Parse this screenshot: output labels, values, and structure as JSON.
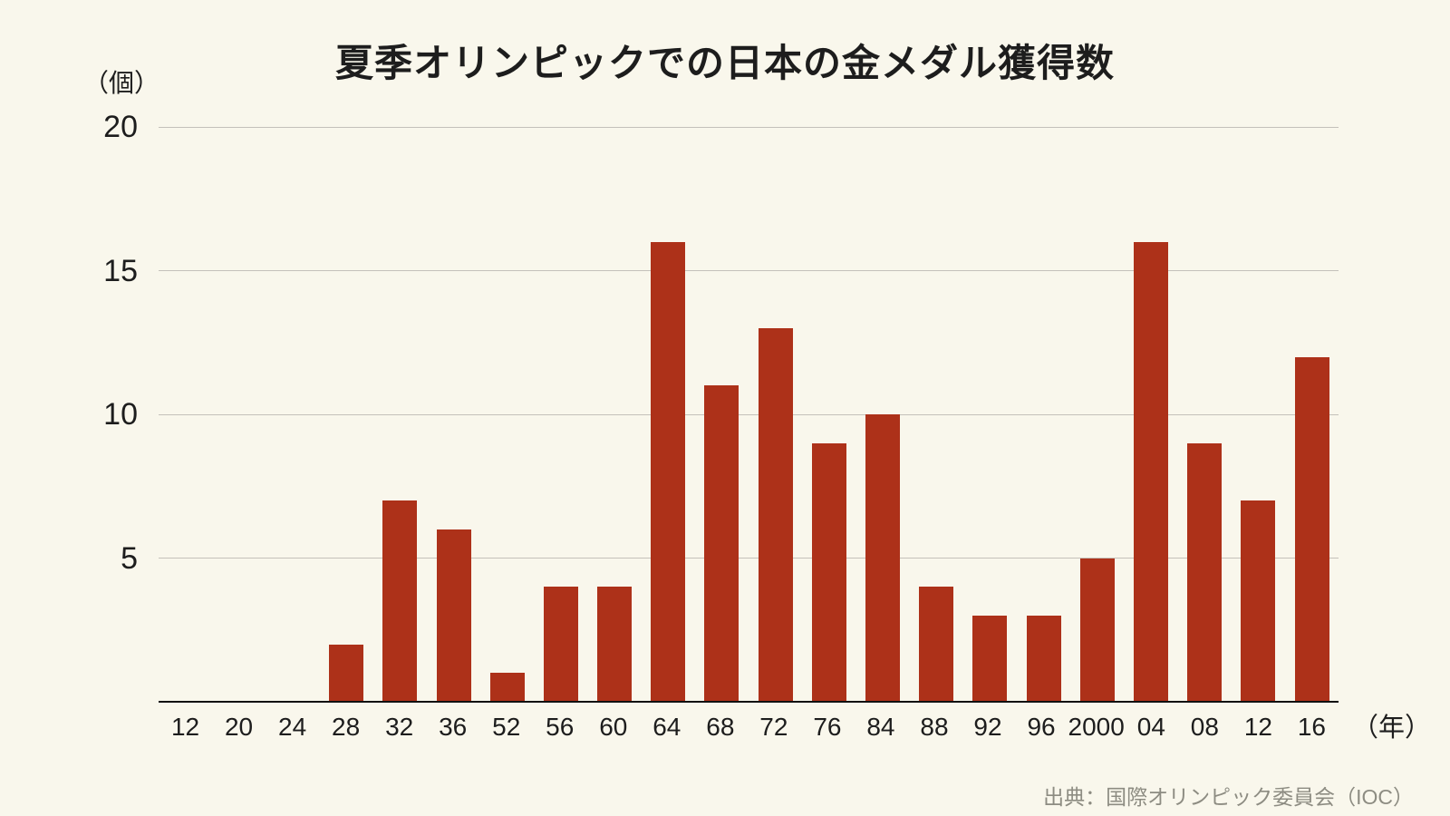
{
  "chart_data": {
    "type": "bar",
    "title": "夏季オリンピックでの日本の金メダル獲得数",
    "y_unit_label": "（個）",
    "x_unit_label": "（年）",
    "source": "出典：国際オリンピック委員会（IOC）",
    "categories": [
      "12",
      "20",
      "24",
      "28",
      "32",
      "36",
      "52",
      "56",
      "60",
      "64",
      "68",
      "72",
      "76",
      "84",
      "88",
      "92",
      "96",
      "2000",
      "04",
      "08",
      "12",
      "16"
    ],
    "values": [
      0,
      0,
      0,
      2,
      7,
      6,
      1,
      4,
      4,
      16,
      11,
      13,
      9,
      10,
      4,
      3,
      3,
      5,
      16,
      9,
      7,
      12
    ],
    "ylim": [
      0,
      20
    ],
    "yticks": [
      5,
      10,
      15,
      20
    ],
    "grid": true,
    "legend": "none",
    "colors": {
      "bar": "#ad3119",
      "background": "#f9f7ec",
      "grid": "#c4c1ba",
      "axis": "#111111",
      "text": "#1d1d1d",
      "source_text": "#8d8c82"
    }
  }
}
